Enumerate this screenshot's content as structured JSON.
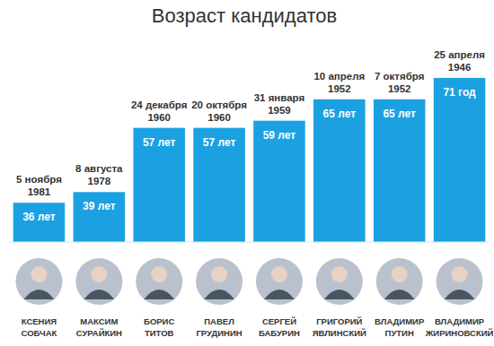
{
  "chart_data": {
    "type": "bar",
    "title": "Возраст кандидатов",
    "categories": [
      "КСЕНИЯ СОБЧАК",
      "МАКСИМ СУРАЙКИН",
      "БОРИС ТИТОВ",
      "ПАВЕЛ ГРУДИНИН",
      "СЕРГЕЙ БАБУРИН",
      "ГРИГОРИЙ ЯВЛИНСКИЙ",
      "ВЛАДИМИР ПУТИН",
      "ВЛАДИМИР ЖИРИНОВСКИЙ"
    ],
    "values": [
      36,
      39,
      57,
      57,
      59,
      65,
      65,
      71
    ],
    "value_labels": [
      "36 лет",
      "39 лет",
      "57 лет",
      "57 лет",
      "59 лет",
      "65 лет",
      "65 лет",
      "71 год"
    ],
    "birth_dates": [
      "5 ноября 1981",
      "8 августа 1978",
      "24 декабря 1960",
      "20 октября 1960",
      "31 января 1959",
      "10 апреля 1952",
      "7 октября 1952",
      "25 апреля 1946"
    ],
    "color": "#1ba1e2",
    "ylim": [
      25,
      75
    ],
    "yticks": [],
    "grid": false,
    "data_labels": true,
    "tick_labels": "x"
  }
}
